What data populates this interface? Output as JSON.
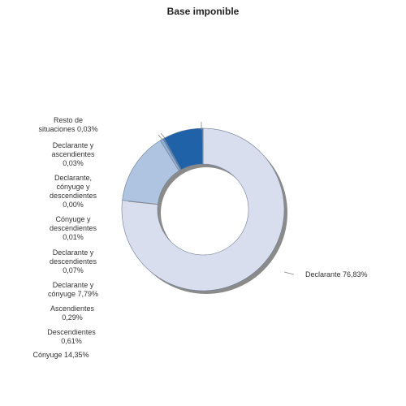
{
  "chart_data": {
    "type": "pie",
    "variant": "donut",
    "title": "Base imponible",
    "slices": [
      {
        "label": "Declarante",
        "value": 76.83,
        "label_text": "Declarante 76,83%",
        "color": "#d9deef"
      },
      {
        "label": "Cónyuge",
        "value": 14.35,
        "label_text": "Cónyuge 14,35%",
        "color": "#aec4e0"
      },
      {
        "label": "Descendientes",
        "value": 0.61,
        "label_text": "Descendientes\n0,61%",
        "color": "#8fb0d6"
      },
      {
        "label": "Ascendientes",
        "value": 0.29,
        "label_text": "Ascendientes\n0,29%",
        "color": "#5a86bd"
      },
      {
        "label": "Declarante y cónyuge",
        "value": 7.79,
        "label_text": "Declarante y\ncónyuge 7,79%",
        "color": "#1f62a8"
      },
      {
        "label": "Declarante y descendientes",
        "value": 0.07,
        "label_text": "Declarante y\ndescendientes\n0,07%",
        "color": "#3f78b8"
      },
      {
        "label": "Cónyuge y descendientes",
        "value": 0.01,
        "label_text": "Cónyuge y\ndescendientes\n0,01%",
        "color": "#6d96c9"
      },
      {
        "label": "Declarante, cónyuge y descendientes",
        "value": 0.0,
        "label_text": "Declarante,\ncónyuge y\ndescendientes\n0,00%",
        "color": "#9ab8dc"
      },
      {
        "label": "Declarante y ascendientes",
        "value": 0.03,
        "label_text": "Declarante y\nascendientes\n0,03%",
        "color": "#b9cde6"
      },
      {
        "label": "Resto de situaciones",
        "value": 0.03,
        "label_text": "Resto de\nsituaciones 0,03%",
        "color": "#d0dcef"
      }
    ]
  }
}
